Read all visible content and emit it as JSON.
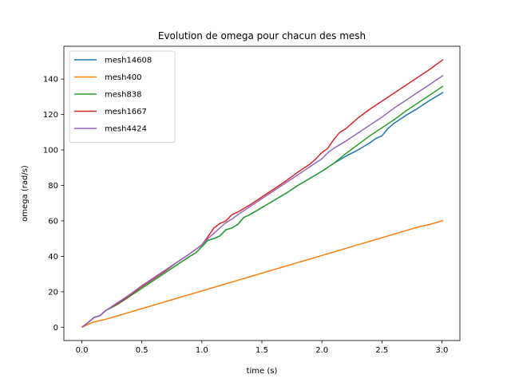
{
  "chart_data": {
    "type": "line",
    "title": "Evolution de omega pour chacun des mesh",
    "xlabel": "time (s)",
    "ylabel": "omega (rad/s)",
    "xlim": [
      -0.15,
      3.15
    ],
    "ylim": [
      -7.5,
      158.5
    ],
    "xticks": [
      0.0,
      0.5,
      1.0,
      1.5,
      2.0,
      2.5,
      3.0
    ],
    "xtick_labels": [
      "0.0",
      "0.5",
      "1.0",
      "1.5",
      "2.0",
      "2.5",
      "3.0"
    ],
    "yticks": [
      0,
      20,
      40,
      60,
      80,
      100,
      120,
      140
    ],
    "ytick_labels": [
      "0",
      "20",
      "40",
      "60",
      "80",
      "100",
      "120",
      "140"
    ],
    "grid": false,
    "legend_position": "top-left",
    "series": [
      {
        "name": "mesh14608",
        "color": "#1f77b4",
        "points": [
          [
            0.0,
            0
          ],
          [
            0.05,
            2.5
          ],
          [
            0.1,
            5.5
          ],
          [
            0.15,
            6.5
          ],
          [
            0.2,
            9.5
          ],
          [
            0.3,
            13
          ],
          [
            0.4,
            17.5
          ],
          [
            0.5,
            22
          ],
          [
            0.6,
            26.5
          ],
          [
            0.7,
            31
          ],
          [
            0.8,
            35.5
          ],
          [
            0.9,
            40
          ],
          [
            0.95,
            42
          ],
          [
            1.0,
            45.5
          ],
          [
            1.05,
            49
          ],
          [
            1.1,
            50
          ],
          [
            1.15,
            51.5
          ],
          [
            1.2,
            55
          ],
          [
            1.25,
            56
          ],
          [
            1.3,
            58
          ],
          [
            1.35,
            62
          ],
          [
            1.4,
            63.5
          ],
          [
            1.5,
            67.5
          ],
          [
            1.6,
            71.5
          ],
          [
            1.7,
            75.5
          ],
          [
            1.8,
            80
          ],
          [
            1.9,
            84
          ],
          [
            2.0,
            88
          ],
          [
            2.1,
            92.5
          ],
          [
            2.2,
            96.5
          ],
          [
            2.3,
            100
          ],
          [
            2.4,
            104
          ],
          [
            2.45,
            106.5
          ],
          [
            2.5,
            108
          ],
          [
            2.55,
            112
          ],
          [
            2.6,
            115
          ],
          [
            2.7,
            119.5
          ],
          [
            2.8,
            123.5
          ],
          [
            2.9,
            128
          ],
          [
            3.01,
            132.5
          ]
        ]
      },
      {
        "name": "mesh400",
        "color": "#ff7f0e",
        "points": [
          [
            0.0,
            0
          ],
          [
            0.05,
            1.5
          ],
          [
            0.1,
            3
          ],
          [
            0.2,
            4.5
          ],
          [
            0.3,
            6.5
          ],
          [
            0.4,
            8.5
          ],
          [
            0.5,
            10.5
          ],
          [
            0.6,
            12.5
          ],
          [
            0.7,
            14.5
          ],
          [
            0.8,
            16.5
          ],
          [
            0.9,
            18.5
          ],
          [
            1.0,
            20.5
          ],
          [
            1.1,
            22.5
          ],
          [
            1.2,
            24.5
          ],
          [
            1.3,
            26.5
          ],
          [
            1.4,
            28.5
          ],
          [
            1.5,
            30.5
          ],
          [
            1.6,
            32.5
          ],
          [
            1.7,
            34.5
          ],
          [
            1.8,
            36.5
          ],
          [
            1.9,
            38.5
          ],
          [
            2.0,
            40.5
          ],
          [
            2.1,
            42.5
          ],
          [
            2.2,
            44.5
          ],
          [
            2.3,
            46.5
          ],
          [
            2.4,
            48.5
          ],
          [
            2.5,
            50.5
          ],
          [
            2.6,
            52.5
          ],
          [
            2.7,
            54.5
          ],
          [
            2.8,
            56.5
          ],
          [
            2.9,
            58
          ],
          [
            3.01,
            60.2
          ]
        ]
      },
      {
        "name": "mesh838",
        "color": "#2ca02c",
        "points": [
          [
            0.0,
            0
          ],
          [
            0.05,
            2.5
          ],
          [
            0.1,
            5.5
          ],
          [
            0.15,
            6.5
          ],
          [
            0.2,
            9.5
          ],
          [
            0.3,
            13
          ],
          [
            0.4,
            17.5
          ],
          [
            0.5,
            22
          ],
          [
            0.6,
            26.5
          ],
          [
            0.7,
            31
          ],
          [
            0.8,
            35.5
          ],
          [
            0.9,
            40
          ],
          [
            0.95,
            42
          ],
          [
            1.0,
            45.5
          ],
          [
            1.05,
            49
          ],
          [
            1.1,
            50
          ],
          [
            1.15,
            51.5
          ],
          [
            1.2,
            55
          ],
          [
            1.25,
            56
          ],
          [
            1.3,
            58
          ],
          [
            1.35,
            62
          ],
          [
            1.4,
            63.5
          ],
          [
            1.5,
            67.5
          ],
          [
            1.6,
            71.5
          ],
          [
            1.7,
            75.5
          ],
          [
            1.8,
            80
          ],
          [
            1.9,
            84
          ],
          [
            2.0,
            88
          ],
          [
            2.1,
            92.5
          ],
          [
            2.2,
            98
          ],
          [
            2.3,
            103
          ],
          [
            2.4,
            108
          ],
          [
            2.5,
            112.5
          ],
          [
            2.6,
            117
          ],
          [
            2.7,
            122
          ],
          [
            2.8,
            126.5
          ],
          [
            2.9,
            131
          ],
          [
            3.01,
            136
          ]
        ]
      },
      {
        "name": "mesh1667",
        "color": "#d62728",
        "points": [
          [
            0.0,
            0
          ],
          [
            0.05,
            2.5
          ],
          [
            0.1,
            5.5
          ],
          [
            0.15,
            6.5
          ],
          [
            0.2,
            9.5
          ],
          [
            0.3,
            13.5
          ],
          [
            0.4,
            18
          ],
          [
            0.5,
            23
          ],
          [
            0.6,
            27.5
          ],
          [
            0.7,
            32
          ],
          [
            0.8,
            37
          ],
          [
            0.9,
            41.5
          ],
          [
            1.0,
            46.5
          ],
          [
            1.05,
            51
          ],
          [
            1.1,
            56
          ],
          [
            1.15,
            58.5
          ],
          [
            1.2,
            60
          ],
          [
            1.25,
            63.5
          ],
          [
            1.3,
            65
          ],
          [
            1.4,
            69
          ],
          [
            1.5,
            73.5
          ],
          [
            1.6,
            78
          ],
          [
            1.7,
            82.5
          ],
          [
            1.8,
            87.5
          ],
          [
            1.9,
            92
          ],
          [
            1.95,
            95
          ],
          [
            2.0,
            98.5
          ],
          [
            2.05,
            101
          ],
          [
            2.1,
            106
          ],
          [
            2.15,
            110
          ],
          [
            2.2,
            112
          ],
          [
            2.25,
            115
          ],
          [
            2.3,
            118
          ],
          [
            2.4,
            123
          ],
          [
            2.5,
            127.5
          ],
          [
            2.6,
            132
          ],
          [
            2.7,
            136.5
          ],
          [
            2.8,
            141
          ],
          [
            2.9,
            145.5
          ],
          [
            3.01,
            151
          ]
        ]
      },
      {
        "name": "mesh4424",
        "color": "#9467bd",
        "points": [
          [
            0.0,
            0
          ],
          [
            0.05,
            2.5
          ],
          [
            0.1,
            5.5
          ],
          [
            0.15,
            6.5
          ],
          [
            0.2,
            9.5
          ],
          [
            0.3,
            14
          ],
          [
            0.4,
            18.5
          ],
          [
            0.5,
            23.5
          ],
          [
            0.6,
            28
          ],
          [
            0.7,
            32.5
          ],
          [
            0.8,
            37
          ],
          [
            0.9,
            41.5
          ],
          [
            1.0,
            46.5
          ],
          [
            1.05,
            50
          ],
          [
            1.1,
            53
          ],
          [
            1.15,
            56
          ],
          [
            1.2,
            59
          ],
          [
            1.25,
            61
          ],
          [
            1.3,
            63.5
          ],
          [
            1.4,
            68
          ],
          [
            1.5,
            72.5
          ],
          [
            1.6,
            77
          ],
          [
            1.7,
            81.5
          ],
          [
            1.8,
            86
          ],
          [
            1.9,
            90.5
          ],
          [
            2.0,
            95
          ],
          [
            2.05,
            98.5
          ],
          [
            2.1,
            101
          ],
          [
            2.2,
            105
          ],
          [
            2.3,
            109.5
          ],
          [
            2.4,
            114
          ],
          [
            2.5,
            118.5
          ],
          [
            2.6,
            123.5
          ],
          [
            2.7,
            128
          ],
          [
            2.8,
            132.5
          ],
          [
            2.9,
            137
          ],
          [
            3.01,
            142
          ]
        ]
      }
    ]
  }
}
